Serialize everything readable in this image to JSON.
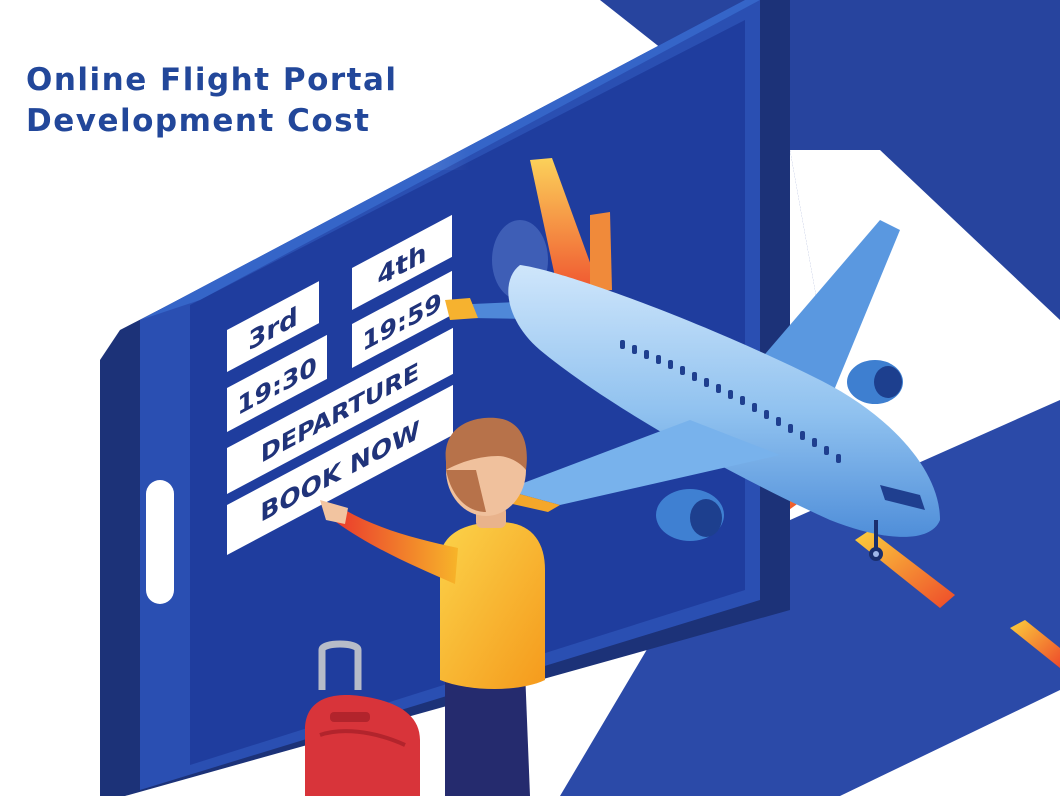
{
  "title": {
    "line1": "Online Flight Portal",
    "line2": "Development Cost"
  },
  "departure_board": {
    "date_1": "3rd",
    "time_1": "19:30",
    "date_2": "4th",
    "time_2": "19:59",
    "label": "DEPARTURE",
    "cta": "BOOK NOW"
  },
  "colors": {
    "title": "#22479a",
    "phone_dark": "#1f3d9e",
    "phone_frame": "#2a4fb2",
    "plane_body": "#8fc4ee",
    "plane_tail": "#f5a623",
    "sweater": "#f8b424",
    "suitcase": "#d8343a"
  }
}
